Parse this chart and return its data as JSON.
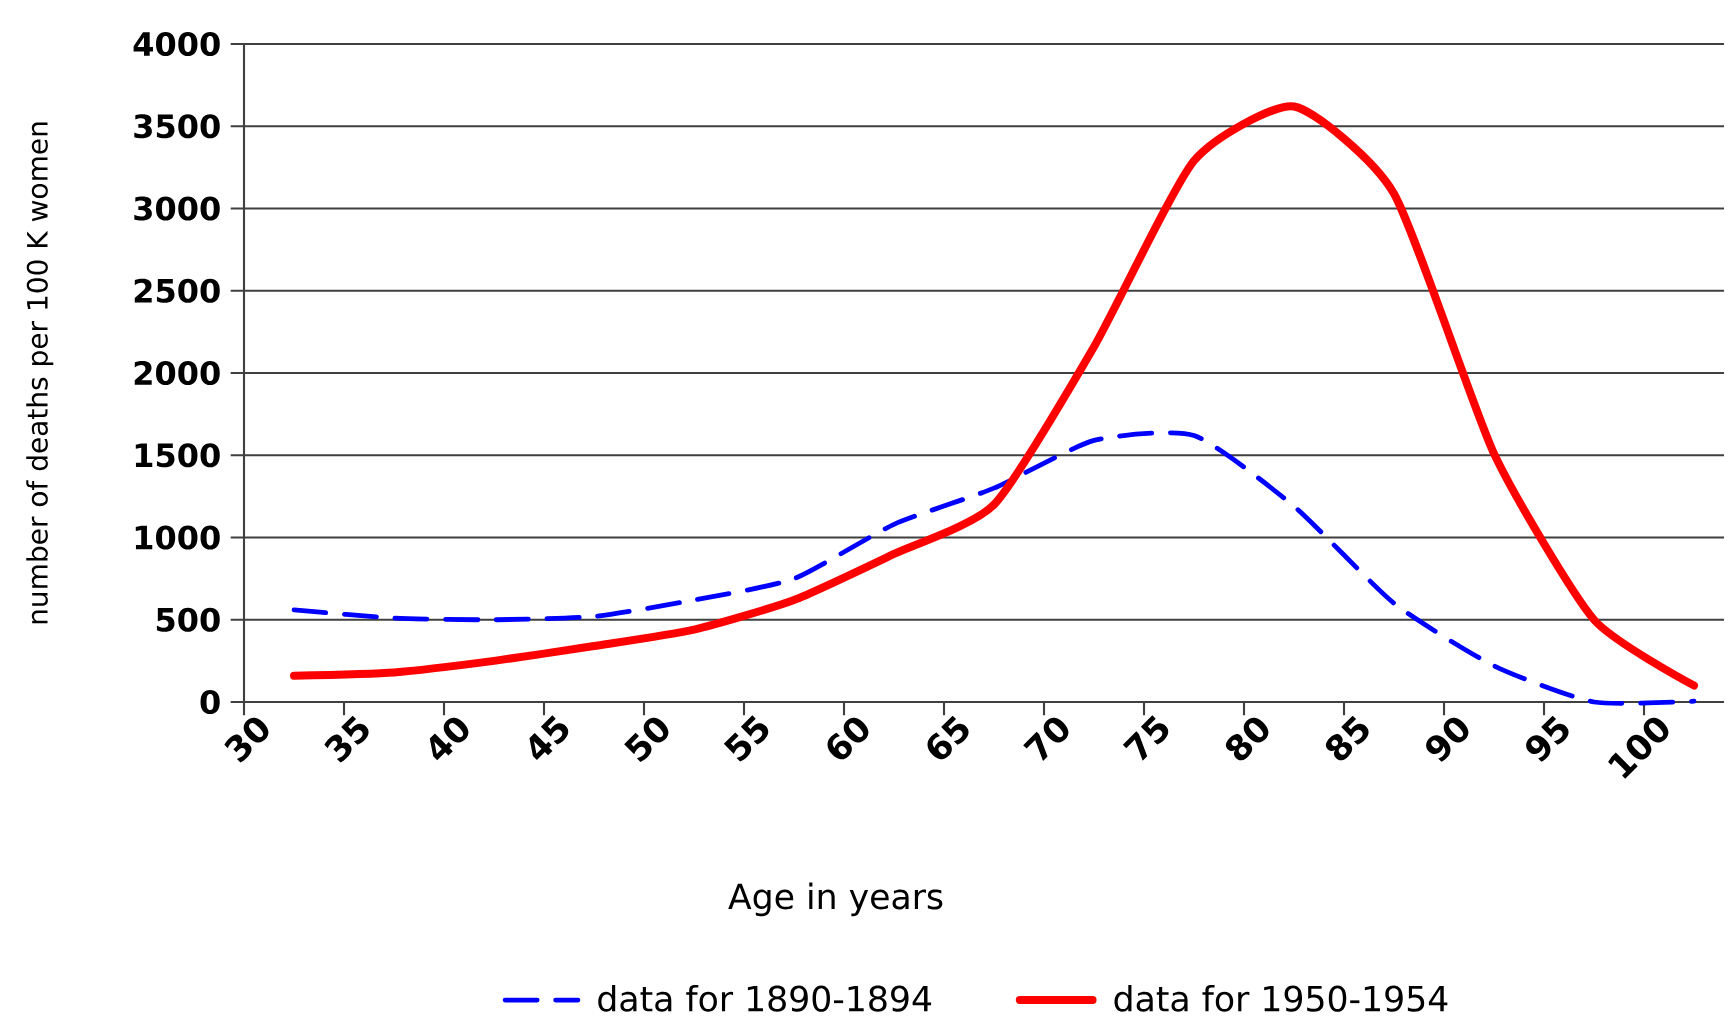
{
  "chart_data": {
    "type": "line",
    "xlabel": "Age in years",
    "ylabel": "number of deaths per 100 K women",
    "x": [
      32.5,
      37.5,
      42.5,
      47.5,
      52.5,
      57.5,
      62.5,
      67.5,
      72.5,
      77.5,
      82.5,
      87.5,
      92.5,
      97.5,
      102.5
    ],
    "series": [
      {
        "name": "data for 1890-1894",
        "color": "#0000ff",
        "line_style": "dashed",
        "values": [
          560,
          510,
          500,
          520,
          620,
          750,
          1080,
          1300,
          1590,
          1620,
          1190,
          600,
          220,
          0,
          5
        ]
      },
      {
        "name": "data for 1950-1954",
        "color": "#ff0000",
        "line_style": "solid",
        "values": [
          160,
          180,
          250,
          340,
          440,
          620,
          900,
          1200,
          2160,
          3290,
          3620,
          3090,
          1510,
          500,
          100
        ]
      }
    ],
    "xlim": [
      30,
      104
    ],
    "ylim": [
      0,
      4000
    ],
    "xticks": [
      30,
      35,
      40,
      45,
      50,
      55,
      60,
      65,
      70,
      75,
      80,
      85,
      90,
      95,
      100
    ],
    "yticks": [
      0,
      500,
      1000,
      1500,
      2000,
      2500,
      3000,
      3500,
      4000
    ],
    "grid": "y",
    "legend": "bottom",
    "marker": "none"
  }
}
